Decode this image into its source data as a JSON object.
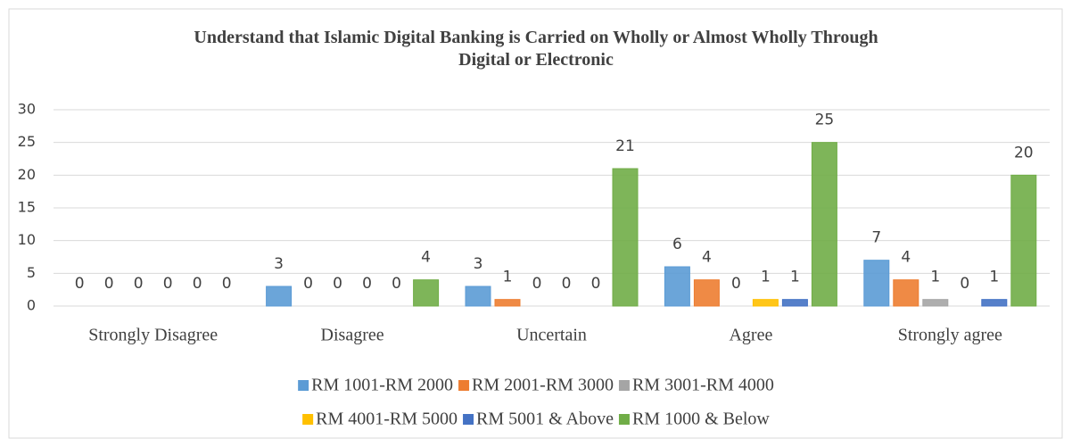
{
  "chart_data": {
    "type": "bar",
    "title": "Understand that Islamic Digital Banking is Carried on Wholly or Almost Wholly Through Digital or Electronic",
    "categories": [
      "Strongly Disagree",
      "Disagree",
      "Uncertain",
      "Agree",
      "Strongly agree"
    ],
    "series": [
      {
        "name": "RM 1001-RM 2000",
        "color": "#5b9bd5",
        "values": [
          0,
          3,
          3,
          6,
          7
        ]
      },
      {
        "name": "RM 2001-RM 3000",
        "color": "#ed7d31",
        "values": [
          0,
          0,
          1,
          4,
          4
        ]
      },
      {
        "name": "RM 3001-RM 4000",
        "color": "#a5a5a5",
        "values": [
          0,
          0,
          0,
          0,
          1
        ]
      },
      {
        "name": "RM 4001-RM 5000",
        "color": "#ffc000",
        "values": [
          0,
          0,
          0,
          1,
          0
        ]
      },
      {
        "name": "RM 5001 & Above",
        "color": "#4472c4",
        "values": [
          0,
          0,
          0,
          1,
          1
        ]
      },
      {
        "name": "RM 1000 & Below",
        "color": "#70ad47",
        "values": [
          0,
          4,
          21,
          25,
          20
        ]
      }
    ],
    "ylim": [
      0,
      30
    ],
    "yticks": [
      0,
      5,
      10,
      15,
      20,
      25,
      30
    ],
    "grid": true,
    "legend": "bottom"
  }
}
